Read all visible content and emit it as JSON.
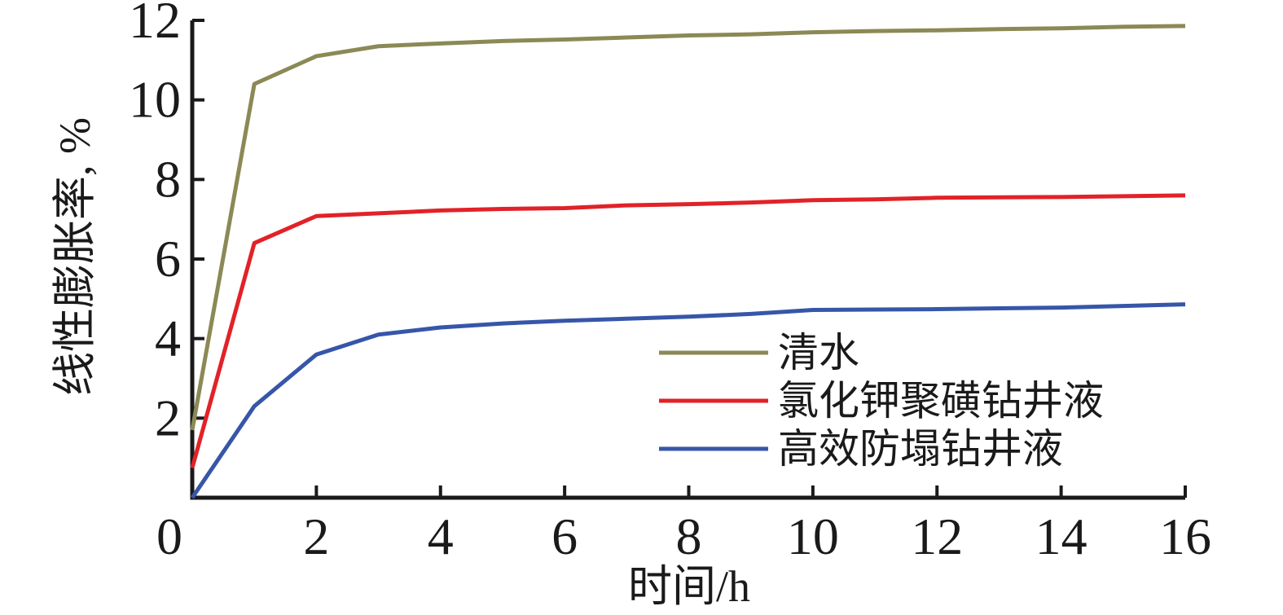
{
  "figure": {
    "background": "#ffffff",
    "text_color": "#1a1a1a"
  },
  "chart_data": {
    "type": "line",
    "title": "",
    "xlabel": "时间/h",
    "ylabel": "线性膨胀率, %",
    "xlim": [
      0,
      16
    ],
    "ylim": [
      0,
      12
    ],
    "x_ticks": [
      0,
      2,
      4,
      6,
      8,
      10,
      12,
      14,
      16
    ],
    "y_ticks": [
      2,
      4,
      6,
      8,
      10,
      12
    ],
    "grid": false,
    "legend_position": "inside-right-middle",
    "axis_color": "#1a1a1a",
    "x": [
      0,
      1,
      2,
      3,
      4,
      5,
      6,
      7,
      8,
      9,
      10,
      11,
      12,
      13,
      14,
      15,
      16
    ],
    "series": [
      {
        "key": "water",
        "name": "清水",
        "color": "#8b8955",
        "values": [
          1.7,
          10.4,
          11.1,
          11.35,
          11.42,
          11.48,
          11.52,
          11.57,
          11.62,
          11.65,
          11.7,
          11.73,
          11.75,
          11.78,
          11.8,
          11.84,
          11.86
        ]
      },
      {
        "key": "kcl-polysulfonate-drilling-fluid",
        "name": "氯化钾聚磺钻井液",
        "color": "#e12228",
        "values": [
          0.75,
          6.4,
          7.08,
          7.15,
          7.22,
          7.26,
          7.28,
          7.35,
          7.38,
          7.42,
          7.48,
          7.5,
          7.54,
          7.55,
          7.56,
          7.58,
          7.6
        ]
      },
      {
        "key": "anti-collapse-drilling-fluid",
        "name": "高效防塌钻井液",
        "color": "#3656a8",
        "values": [
          0,
          2.3,
          3.6,
          4.1,
          4.28,
          4.38,
          4.45,
          4.5,
          4.55,
          4.62,
          4.72,
          4.73,
          4.74,
          4.76,
          4.78,
          4.82,
          4.86
        ]
      }
    ]
  }
}
